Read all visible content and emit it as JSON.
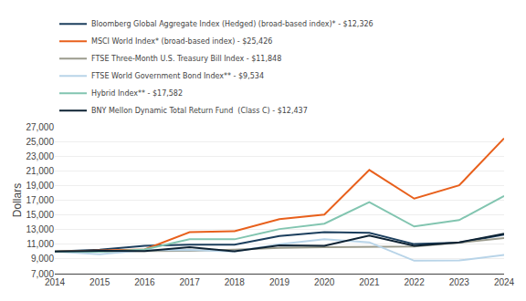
{
  "chart_data": {
    "type": "line",
    "x": [
      2014,
      2015,
      2016,
      2017,
      2018,
      2019,
      2020,
      2021,
      2022,
      2023,
      2024
    ],
    "series": [
      {
        "name": "Bloomberg Global Aggregate Index (Hedged) (broad-based index)* - $12,326",
        "color": "#1c3f5e",
        "values": [
          10000,
          10272,
          10803,
          10936,
          10958,
          12127,
          12651,
          12546,
          11024,
          11214,
          12326
        ]
      },
      {
        "name": "MSCI World Index* (broad-based index) - $25,426",
        "color": "#e8601c",
        "values": [
          10000,
          10177,
          10297,
          12642,
          12789,
          14412,
          15040,
          21119,
          17216,
          19020,
          25426
        ]
      },
      {
        "name": "FTSE Three-Month U.S. Treasury Bill Index - $11,848",
        "color": "#9b9b8d",
        "values": [
          10000,
          10002,
          10024,
          10095,
          10264,
          10505,
          10595,
          10600,
          10693,
          11221,
          11848
        ]
      },
      {
        "name": "FTSE World Government Bond Index** - $9,534",
        "color": "#b8d4e8",
        "values": [
          10000,
          9637,
          10214,
          10237,
          10023,
          11017,
          11678,
          11263,
          8759,
          8798,
          9534
        ]
      },
      {
        "name": "Hybrid Index** - $17,582",
        "color": "#82c5b0",
        "values": [
          10000,
          9982,
          10306,
          11677,
          11675,
          13071,
          13807,
          16731,
          13422,
          14290,
          17582
        ]
      },
      {
        "name": "BNY Mellon Dynamic Total Return Fund  (Class C) - $12,437",
        "color": "#0d2233",
        "values": [
          10000,
          10095,
          10088,
          10607,
          10045,
          10850,
          10796,
          12192,
          10797,
          11250,
          12437
        ]
      }
    ],
    "ylabel": "Dollars",
    "xlim": [
      2014,
      2024
    ],
    "xticks": [
      2014,
      2015,
      2016,
      2017,
      2018,
      2019,
      2020,
      2021,
      2022,
      2023,
      2024
    ],
    "ylim": [
      7000,
      27000
    ],
    "yticks": [
      {
        "value": 7000,
        "label": "7,000"
      },
      {
        "value": 9000,
        "label": "9,000"
      },
      {
        "value": 11000,
        "label": "11,000"
      },
      {
        "value": 13000,
        "label": "13,000"
      },
      {
        "value": 15000,
        "label": "15,000"
      },
      {
        "value": 17000,
        "label": "17,000"
      },
      {
        "value": 19000,
        "label": "19,000"
      },
      {
        "value": 21000,
        "label": "21,000"
      },
      {
        "value": 23000,
        "label": "23,000"
      },
      {
        "value": 25000,
        "label": "25,000"
      },
      {
        "value": 27000,
        "label": "27,000"
      }
    ],
    "grid": true,
    "legend": "upper left"
  }
}
